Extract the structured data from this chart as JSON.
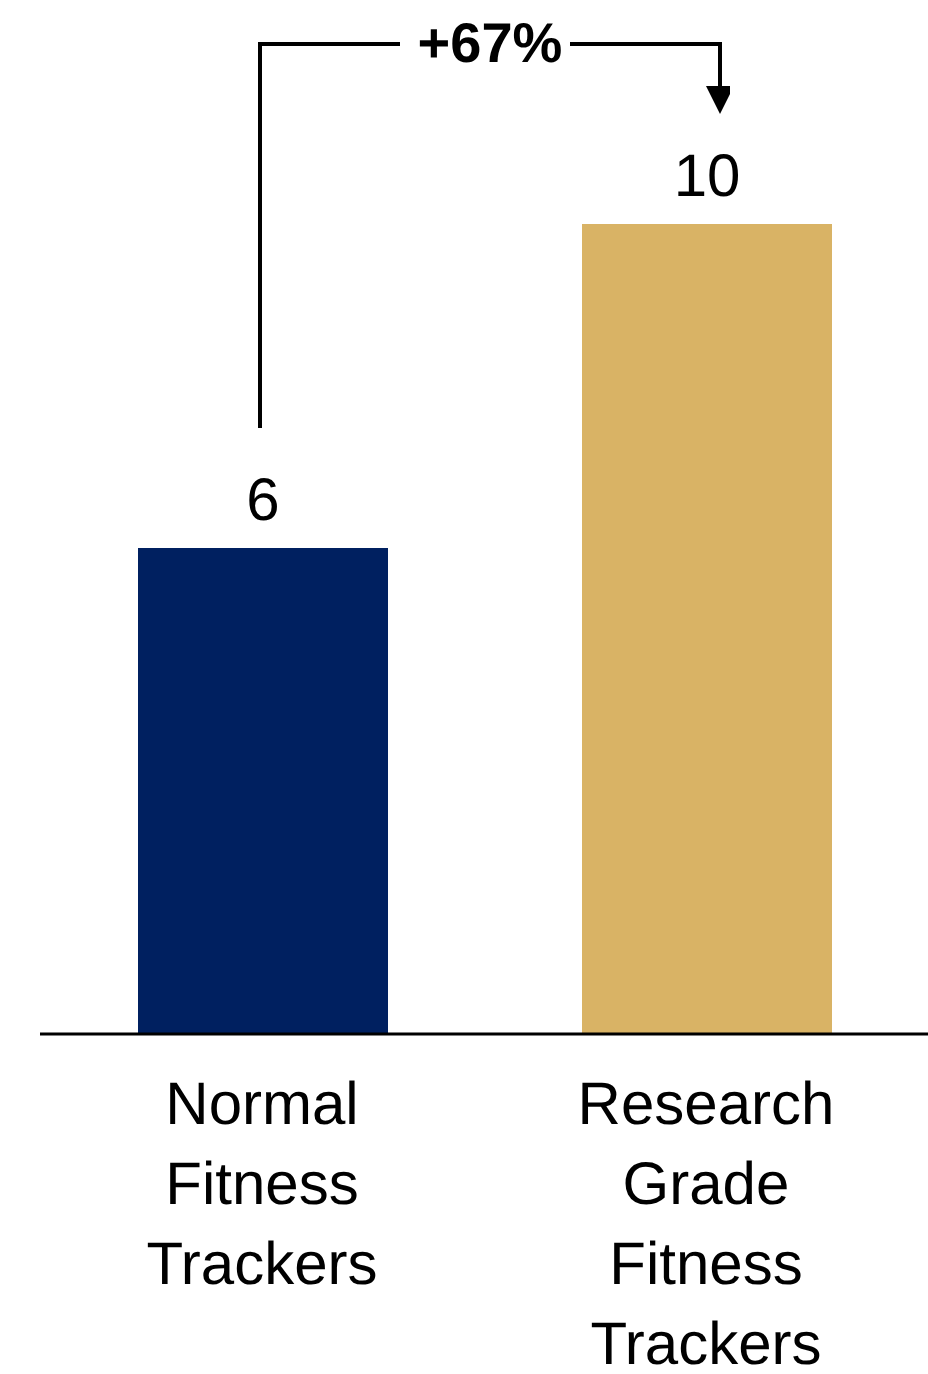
{
  "chart_data": {
    "type": "bar",
    "categories": [
      "Normal Fitness Trackers",
      "Research Grade Fitness Trackers"
    ],
    "values": [
      6,
      10
    ],
    "colors": [
      "#002060",
      "#d9b365"
    ],
    "data_labels": true,
    "annotations": [
      "+67%"
    ]
  }
}
